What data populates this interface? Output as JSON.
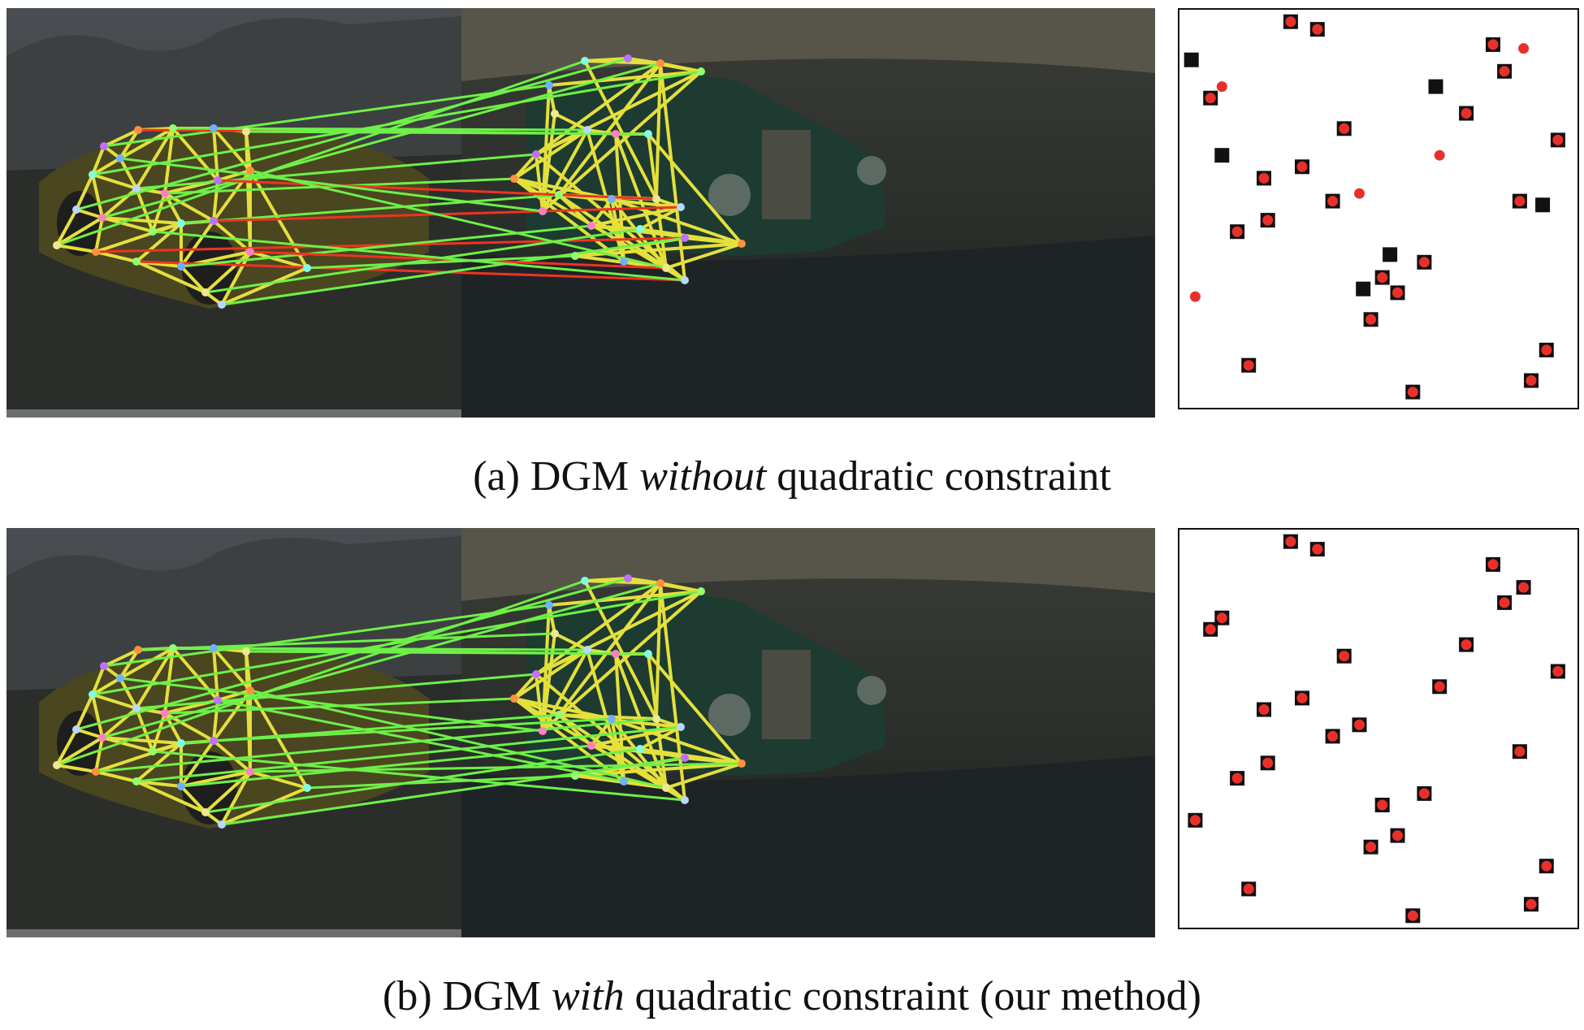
{
  "panels": [
    {
      "id": "a",
      "caption_label": "(a)",
      "caption_pre": "DGM",
      "caption_emph": "without",
      "caption_post": "quadratic constraint",
      "incorrect_matches": 6,
      "matrix_squares": [
        [
          0.27,
          0.01
        ],
        [
          0.34,
          0.03
        ],
        [
          0.8,
          0.07
        ],
        [
          0.83,
          0.14
        ],
        [
          0.01,
          0.11
        ],
        [
          0.06,
          0.21
        ],
        [
          0.65,
          0.18
        ],
        [
          0.73,
          0.25
        ],
        [
          0.41,
          0.29
        ],
        [
          0.97,
          0.32
        ],
        [
          0.09,
          0.36
        ],
        [
          0.3,
          0.39
        ],
        [
          0.2,
          0.42
        ],
        [
          0.38,
          0.48
        ],
        [
          0.87,
          0.48
        ],
        [
          0.21,
          0.53
        ],
        [
          0.93,
          0.49
        ],
        [
          0.13,
          0.56
        ],
        [
          0.53,
          0.62
        ],
        [
          0.62,
          0.64
        ],
        [
          0.51,
          0.68
        ],
        [
          0.46,
          0.71
        ],
        [
          0.55,
          0.72
        ],
        [
          0.48,
          0.79
        ],
        [
          0.94,
          0.87
        ],
        [
          0.16,
          0.91
        ],
        [
          0.9,
          0.95
        ],
        [
          0.59,
          0.98
        ]
      ],
      "matrix_dots": [
        [
          0.27,
          0.01
        ],
        [
          0.34,
          0.03
        ],
        [
          0.8,
          0.07
        ],
        [
          0.88,
          0.08
        ],
        [
          0.83,
          0.14
        ],
        [
          0.09,
          0.18
        ],
        [
          0.06,
          0.21
        ],
        [
          0.73,
          0.25
        ],
        [
          0.41,
          0.29
        ],
        [
          0.97,
          0.32
        ],
        [
          0.66,
          0.36
        ],
        [
          0.3,
          0.39
        ],
        [
          0.2,
          0.42
        ],
        [
          0.45,
          0.46
        ],
        [
          0.38,
          0.48
        ],
        [
          0.87,
          0.48
        ],
        [
          0.21,
          0.53
        ],
        [
          0.13,
          0.56
        ],
        [
          0.62,
          0.64
        ],
        [
          0.51,
          0.68
        ],
        [
          0.02,
          0.73
        ],
        [
          0.55,
          0.72
        ],
        [
          0.48,
          0.79
        ],
        [
          0.94,
          0.87
        ],
        [
          0.16,
          0.91
        ],
        [
          0.9,
          0.95
        ],
        [
          0.59,
          0.98
        ]
      ]
    },
    {
      "id": "b",
      "caption_label": "(b)",
      "caption_pre": "DGM",
      "caption_emph": "with",
      "caption_post": "quadratic constraint (our method)",
      "incorrect_matches": 0,
      "matrix_squares": [
        [
          0.27,
          0.01
        ],
        [
          0.34,
          0.03
        ],
        [
          0.8,
          0.07
        ],
        [
          0.88,
          0.13
        ],
        [
          0.83,
          0.17
        ],
        [
          0.09,
          0.21
        ],
        [
          0.06,
          0.24
        ],
        [
          0.73,
          0.28
        ],
        [
          0.41,
          0.31
        ],
        [
          0.97,
          0.35
        ],
        [
          0.66,
          0.39
        ],
        [
          0.3,
          0.42
        ],
        [
          0.2,
          0.45
        ],
        [
          0.45,
          0.49
        ],
        [
          0.38,
          0.52
        ],
        [
          0.87,
          0.56
        ],
        [
          0.21,
          0.59
        ],
        [
          0.13,
          0.63
        ],
        [
          0.62,
          0.67
        ],
        [
          0.51,
          0.7
        ],
        [
          0.02,
          0.74
        ],
        [
          0.55,
          0.78
        ],
        [
          0.48,
          0.81
        ],
        [
          0.94,
          0.86
        ],
        [
          0.16,
          0.92
        ],
        [
          0.9,
          0.96
        ],
        [
          0.59,
          0.99
        ]
      ],
      "matrix_dots": [
        [
          0.27,
          0.01
        ],
        [
          0.34,
          0.03
        ],
        [
          0.8,
          0.07
        ],
        [
          0.88,
          0.13
        ],
        [
          0.83,
          0.17
        ],
        [
          0.09,
          0.21
        ],
        [
          0.06,
          0.24
        ],
        [
          0.73,
          0.28
        ],
        [
          0.41,
          0.31
        ],
        [
          0.97,
          0.35
        ],
        [
          0.66,
          0.39
        ],
        [
          0.3,
          0.42
        ],
        [
          0.2,
          0.45
        ],
        [
          0.45,
          0.49
        ],
        [
          0.38,
          0.52
        ],
        [
          0.87,
          0.56
        ],
        [
          0.21,
          0.59
        ],
        [
          0.13,
          0.63
        ],
        [
          0.62,
          0.67
        ],
        [
          0.51,
          0.7
        ],
        [
          0.02,
          0.74
        ],
        [
          0.55,
          0.78
        ],
        [
          0.48,
          0.81
        ],
        [
          0.94,
          0.86
        ],
        [
          0.16,
          0.92
        ],
        [
          0.9,
          0.96
        ],
        [
          0.59,
          0.99
        ]
      ]
    }
  ],
  "colors": {
    "correct_match": "#6ef048",
    "incorrect_match": "#ee3322",
    "graph_edge": "#e4e03c",
    "matrix_square": "#111111",
    "matrix_dot": "#e8302a"
  }
}
